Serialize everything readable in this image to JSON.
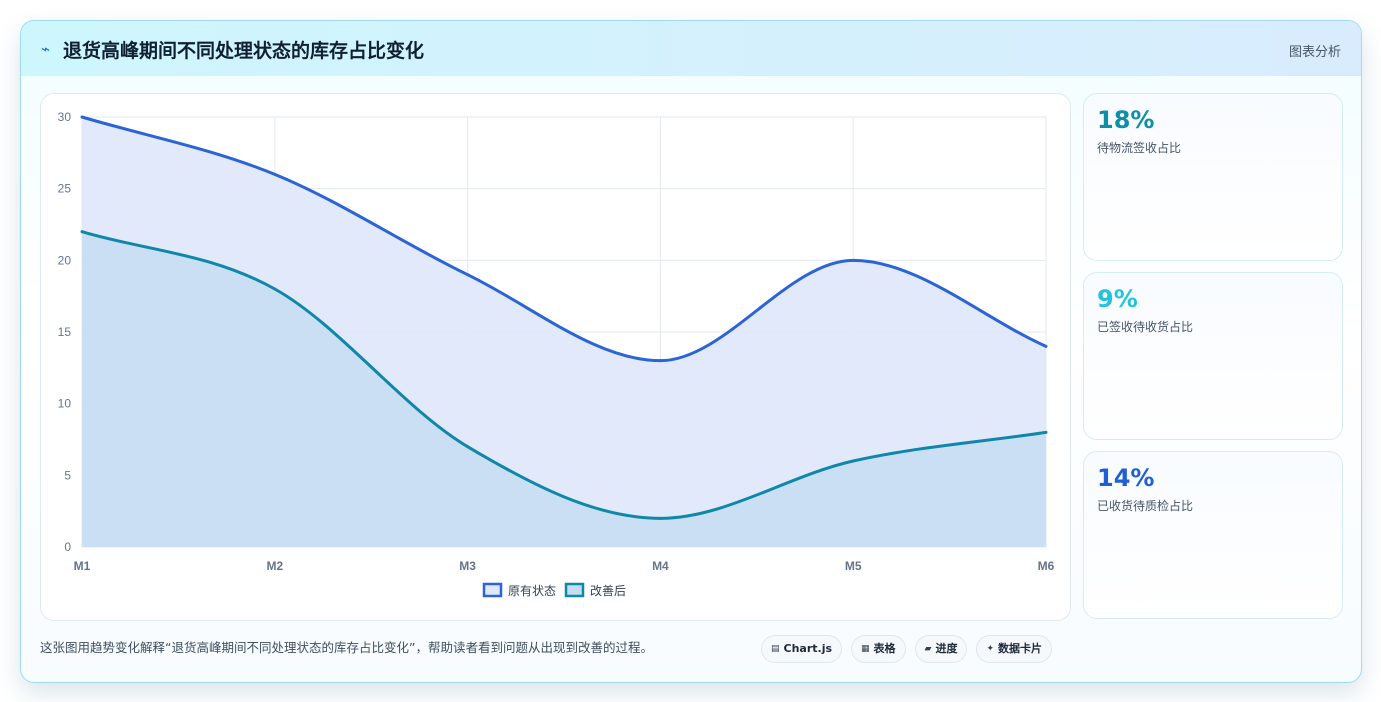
{
  "header": {
    "icon": "chart-line-icon",
    "title": "退货高峰期间不同处理状态的库存占比变化",
    "tag": "图表分析"
  },
  "kpis": [
    {
      "value": "18%",
      "label": "待物流签收占比",
      "color": "#0e8fa6"
    },
    {
      "value": "9%",
      "label": "已签收待收货占比",
      "color": "#22c3dd"
    },
    {
      "value": "14%",
      "label": "已收货待质检占比",
      "color": "#1f5fd0"
    }
  ],
  "caption": "这张图用趋势变化解释“退货高峰期间不同处理状态的库存占比变化”，帮助读者看到问题从出现到改善的过程。",
  "chips": [
    {
      "icon": "chart-icon",
      "glyph": "▤",
      "label": "Chart.js"
    },
    {
      "icon": "table-icon",
      "glyph": "▦",
      "label": "表格"
    },
    {
      "icon": "progress-icon",
      "glyph": "▰",
      "label": "进度"
    },
    {
      "icon": "sparkle-icon",
      "glyph": "✦",
      "label": "数据卡片"
    }
  ],
  "chart_data": {
    "type": "area",
    "categories": [
      "M1",
      "M2",
      "M3",
      "M4",
      "M5",
      "M6"
    ],
    "series": [
      {
        "name": "原有状态",
        "values": [
          30,
          26,
          19,
          13,
          20,
          14
        ],
        "color": "#2b64d6",
        "fill": "#dfe8fa"
      },
      {
        "name": "改善后",
        "values": [
          22,
          18,
          7,
          2,
          6,
          8
        ],
        "color": "#0f87a8",
        "fill": "#c5ddf2"
      }
    ],
    "ylim": [
      0,
      30
    ],
    "yticks": [
      0,
      5,
      10,
      15,
      20,
      25,
      30
    ],
    "grid": true,
    "legend": "bottom"
  }
}
